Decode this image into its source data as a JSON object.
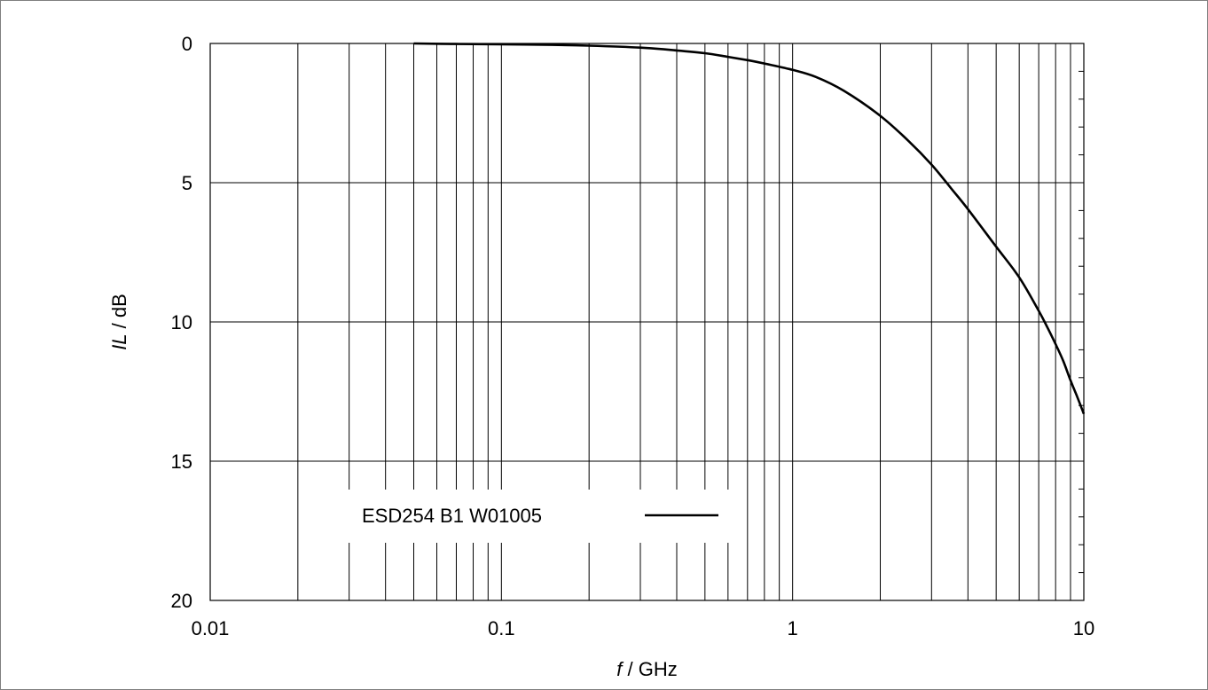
{
  "chart_data": {
    "type": "line",
    "title": "",
    "xlabel_var": "f",
    "xlabel_unit": " / GHz",
    "ylabel_var": "IL",
    "ylabel_unit": " / dB",
    "x_scale": "log",
    "xlim": [
      0.01,
      10
    ],
    "ylim": [
      0,
      20
    ],
    "y_inverted": true,
    "x_ticks": [
      "0.01",
      "0.1",
      "1",
      "10"
    ],
    "y_ticks": [
      "0",
      "5",
      "10",
      "15",
      "20"
    ],
    "grid": true,
    "legend_position": "bottom-left",
    "series": [
      {
        "name": "ESD254 B1 W01005",
        "color": "#000000",
        "x": [
          0.05,
          0.07,
          0.1,
          0.15,
          0.2,
          0.3,
          0.4,
          0.5,
          0.6,
          0.7,
          0.8,
          1.0,
          1.2,
          1.5,
          2.0,
          2.5,
          3.0,
          3.5,
          4.0,
          5.0,
          6.0,
          7.0,
          7.5,
          8.0,
          8.5,
          9.0,
          9.5,
          10.0
        ],
        "y": [
          0.0,
          0.02,
          0.03,
          0.05,
          0.08,
          0.15,
          0.25,
          0.35,
          0.48,
          0.6,
          0.72,
          0.95,
          1.2,
          1.7,
          2.6,
          3.5,
          4.35,
          5.2,
          5.95,
          7.3,
          8.4,
          9.6,
          10.2,
          10.8,
          11.4,
          12.1,
          12.7,
          13.3
        ]
      }
    ]
  }
}
